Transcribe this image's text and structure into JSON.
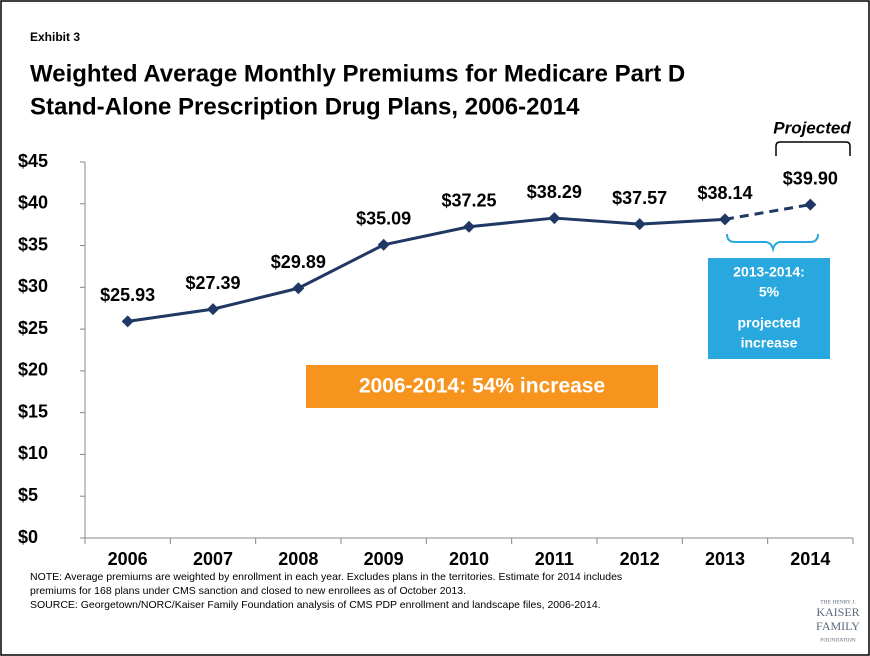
{
  "chart_data": {
    "type": "line",
    "exhibit": "Exhibit 3",
    "title_lines": [
      "Weighted Average Monthly Premiums for Medicare Part D",
      "Stand-Alone Prescription Drug Plans, 2006-2014"
    ],
    "categories": [
      "2006",
      "2007",
      "2008",
      "2009",
      "2010",
      "2011",
      "2012",
      "2013",
      "2014"
    ],
    "values": [
      25.93,
      27.39,
      29.89,
      35.09,
      37.25,
      38.29,
      37.57,
      38.14,
      39.9
    ],
    "value_labels": [
      "$25.93",
      "$27.39",
      "$29.89",
      "$35.09",
      "$37.25",
      "$38.29",
      "$37.57",
      "$38.14",
      "$39.90"
    ],
    "color": "#1f3864",
    "ylim": [
      0,
      45
    ],
    "yticks": [
      {
        "value": 0,
        "label": "$0"
      },
      {
        "value": 5,
        "label": "$5"
      },
      {
        "value": 10,
        "label": "$10"
      },
      {
        "value": 15,
        "label": "$15"
      },
      {
        "value": 20,
        "label": "$20"
      },
      {
        "value": 25,
        "label": "$25"
      },
      {
        "value": 30,
        "label": "$30"
      },
      {
        "value": 35,
        "label": "$35"
      },
      {
        "value": 40,
        "label": "$40"
      },
      {
        "value": 45,
        "label": "$45"
      }
    ],
    "grid": false,
    "projected_label": "Projected",
    "annotations": {
      "total": "2006-2014:  54% increase",
      "projected_increase": [
        "2013-2014:",
        "5%",
        "projected",
        "increase"
      ]
    },
    "note_lines": [
      "NOTE: Average premiums are weighted by enrollment in each year.  Excludes plans in the territories.  Estimate for 2014 includes",
      "premiums for 168 plans under CMS sanction and closed to new enrollees as of October 2013.",
      "SOURCE: Georgetown/NORC/Kaiser Family Foundation analysis of CMS PDP enrollment and landscape files, 2006-2014."
    ],
    "logo_lines": [
      "THE HENRY J.",
      "KAISER",
      "FAMILY",
      "FOUNDATION"
    ]
  }
}
